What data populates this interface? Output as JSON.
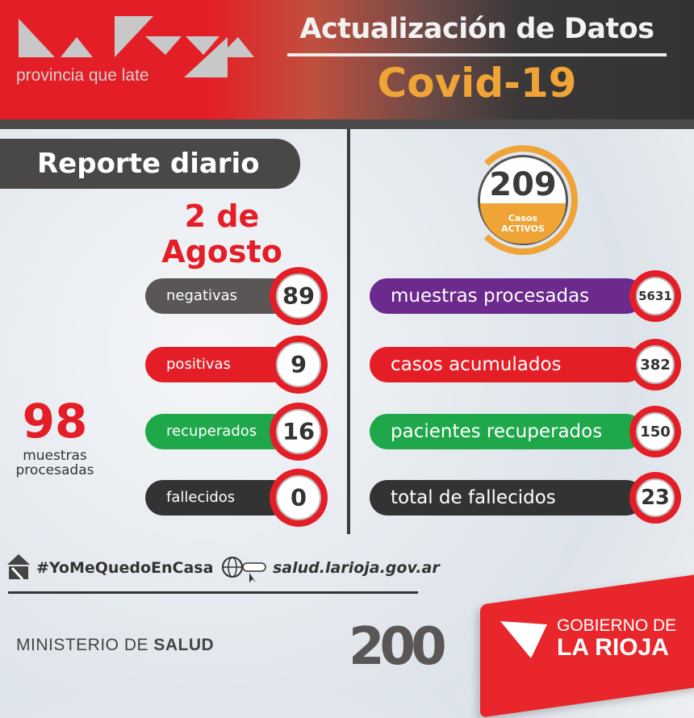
{
  "header": {
    "logo_tagline": "provincia que late",
    "title": "Actualización de Datos",
    "subtitle": "Covid-19"
  },
  "report": {
    "label": "Reporte diario",
    "date": "2 de Agosto"
  },
  "daily": [
    {
      "label": "negativas",
      "value": "89",
      "color": "#5a5656"
    },
    {
      "label": "positivas",
      "value": "9",
      "color": "#e41e26"
    },
    {
      "label": "recuperados",
      "value": "16",
      "color": "#1ea84a"
    },
    {
      "label": "fallecidos",
      "value": "0",
      "color": "#333333"
    }
  ],
  "daily_total": {
    "value": "98",
    "label": "muestras procesadas"
  },
  "active": {
    "value": "209",
    "label_line1": "Casos",
    "label_line2": "ACTIVOS",
    "color": "#f0a436"
  },
  "cumulative": [
    {
      "label": "muestras procesadas",
      "value": "5631",
      "color": "#6b2a8c"
    },
    {
      "label": "casos acumulados",
      "value": "382",
      "color": "#e41e26"
    },
    {
      "label": "pacientes recuperados",
      "value": "150",
      "color": "#1ea84a"
    },
    {
      "label": "total de fallecidos",
      "value": "23",
      "color": "#333333"
    }
  ],
  "footer": {
    "hashtag": "#YoMeQuedoEnCasa",
    "website": "salud.larioja.gov.ar",
    "ministry_light": "MINISTERIO DE ",
    "ministry_bold": "SALUD",
    "anniversary_logo": "200",
    "gov_line1": "GOBIERNO DE",
    "gov_line2": "LA RIOJA"
  }
}
